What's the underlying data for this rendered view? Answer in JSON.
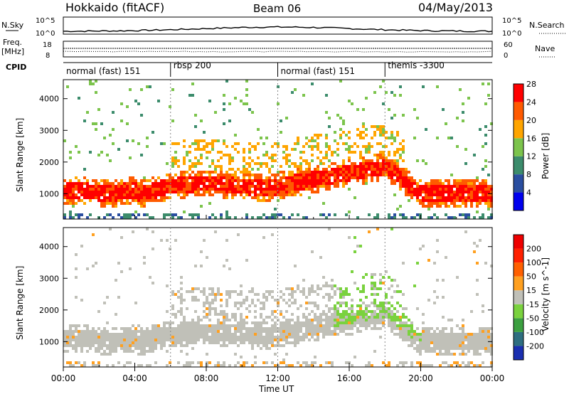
{
  "header": {
    "title": "Hokkaido (fitACF)",
    "beam": "Beam 06",
    "date": "04/May/2013"
  },
  "sky_panel": {
    "left_label": "N.Sky",
    "right_label": "N.Search",
    "left_ticks": [
      "10^5",
      "10^0"
    ],
    "right_ticks": [
      "10^5",
      "10^0"
    ]
  },
  "freq_panel": {
    "left_label_1": "Freq.",
    "left_label_2": "[MHz]",
    "right_label": "Nave",
    "left_ticks": [
      "18",
      "8"
    ],
    "right_ticks": [
      "60",
      "0"
    ]
  },
  "cpid_panel": {
    "label": "CPID",
    "modes": [
      {
        "name": "normal (fast) 151",
        "start_hour": 0
      },
      {
        "name": "rbsp 200",
        "start_hour": 6
      },
      {
        "name": "normal (fast) 151",
        "start_hour": 12
      },
      {
        "name": "themis -3300",
        "start_hour": 18
      }
    ]
  },
  "chart_data": [
    {
      "type": "heatmap",
      "name": "power",
      "ylabel": "Slant Range [km]",
      "y_ticks": [
        1000,
        2000,
        3000,
        4000
      ],
      "ylim": [
        200,
        4600
      ],
      "colorbar_label": "Power [dB]",
      "colorbar_ticks": [
        4,
        8,
        12,
        16,
        20,
        24,
        28
      ],
      "colorbar_range": [
        0,
        32
      ],
      "colors": [
        "#0000ee",
        "#2a4ea0",
        "#3c8c6c",
        "#7cc44c",
        "#ffa500",
        "#ff5a00",
        "#ff0000"
      ]
    },
    {
      "type": "heatmap",
      "name": "velocity",
      "ylabel": "Slant Range [km]",
      "y_ticks": [
        1000,
        2000,
        3000,
        4000
      ],
      "ylim": [
        200,
        4600
      ],
      "colorbar_label": "Velocity [m s^-1]",
      "colorbar_ticks": [
        "200",
        "100",
        "50",
        "15",
        "-15",
        "-50",
        "-100",
        "-200"
      ],
      "colors": [
        "#1a2fb0",
        "#2e6e80",
        "#3ca040",
        "#7ad23e",
        "#c0c0b8",
        "#ffa020",
        "#ff6000",
        "#ff2000",
        "#ee0000"
      ]
    }
  ],
  "x_axis": {
    "label": "Time UT",
    "ticks": [
      "00:00",
      "04:00",
      "08:00",
      "12:00",
      "16:00",
      "20:00",
      "00:00"
    ],
    "xlim_hours": [
      0,
      24
    ]
  }
}
